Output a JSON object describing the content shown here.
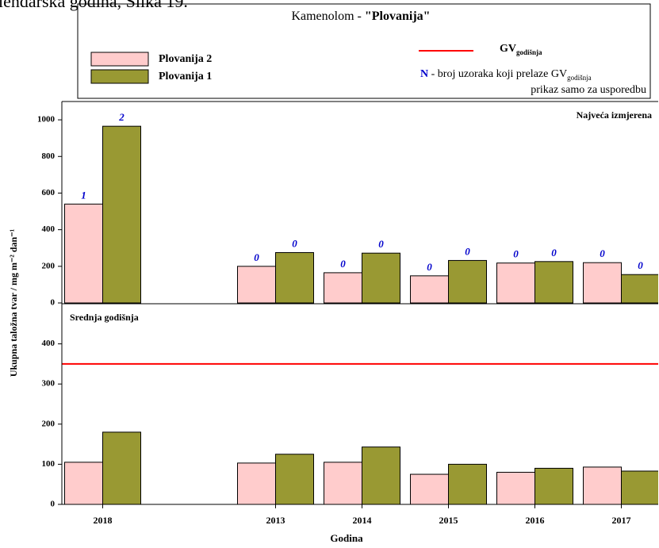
{
  "caption": "lendarska godina, Slika 19.",
  "legend_box": {
    "title_prefix": "Kamenolom - ",
    "title_name": "\"Plovanija\"",
    "gv": "GV",
    "gv_sub": "godišnja",
    "n_mark": "N",
    "n_text": " - broj uzoraka koji prelaze GV",
    "n_sub": "godišnja",
    "note": "prikaz samo za usporedbu"
  },
  "chart_data": {
    "type": "bar",
    "categories": [
      "2018",
      null,
      "2013",
      "2014",
      "2015",
      "2016",
      "2017"
    ],
    "xlabel": "Godina",
    "ylabel": "Ukupna taložna tvar / mg m⁻² dan⁻¹",
    "series": [
      {
        "name": "Plovanija 2",
        "color": "#ffcccc"
      },
      {
        "name": "Plovanija 1",
        "color": "#999933"
      }
    ],
    "panels": [
      {
        "label": "Najveća izmjerena",
        "ylim": [
          0,
          1100
        ],
        "yticks": [
          0,
          200,
          400,
          600,
          800,
          1000
        ],
        "values": [
          [
            540,
            null,
            200,
            165,
            148,
            218,
            220
          ],
          [
            965,
            null,
            275,
            272,
            232,
            226,
            155
          ]
        ],
        "counts": [
          [
            1,
            null,
            0,
            0,
            0,
            0,
            0
          ],
          [
            2,
            null,
            0,
            0,
            0,
            0,
            0
          ]
        ],
        "count_color": "#0000cc"
      },
      {
        "label": "Srednja godišnja",
        "ylim": [
          0,
          500
        ],
        "yticks": [
          0,
          100,
          200,
          300,
          400
        ],
        "values": [
          [
            105,
            null,
            103,
            105,
            75,
            80,
            93
          ],
          [
            180,
            null,
            125,
            143,
            100,
            90,
            83
          ]
        ],
        "reference_line": {
          "value": 350,
          "color": "#ff0000"
        }
      }
    ]
  }
}
